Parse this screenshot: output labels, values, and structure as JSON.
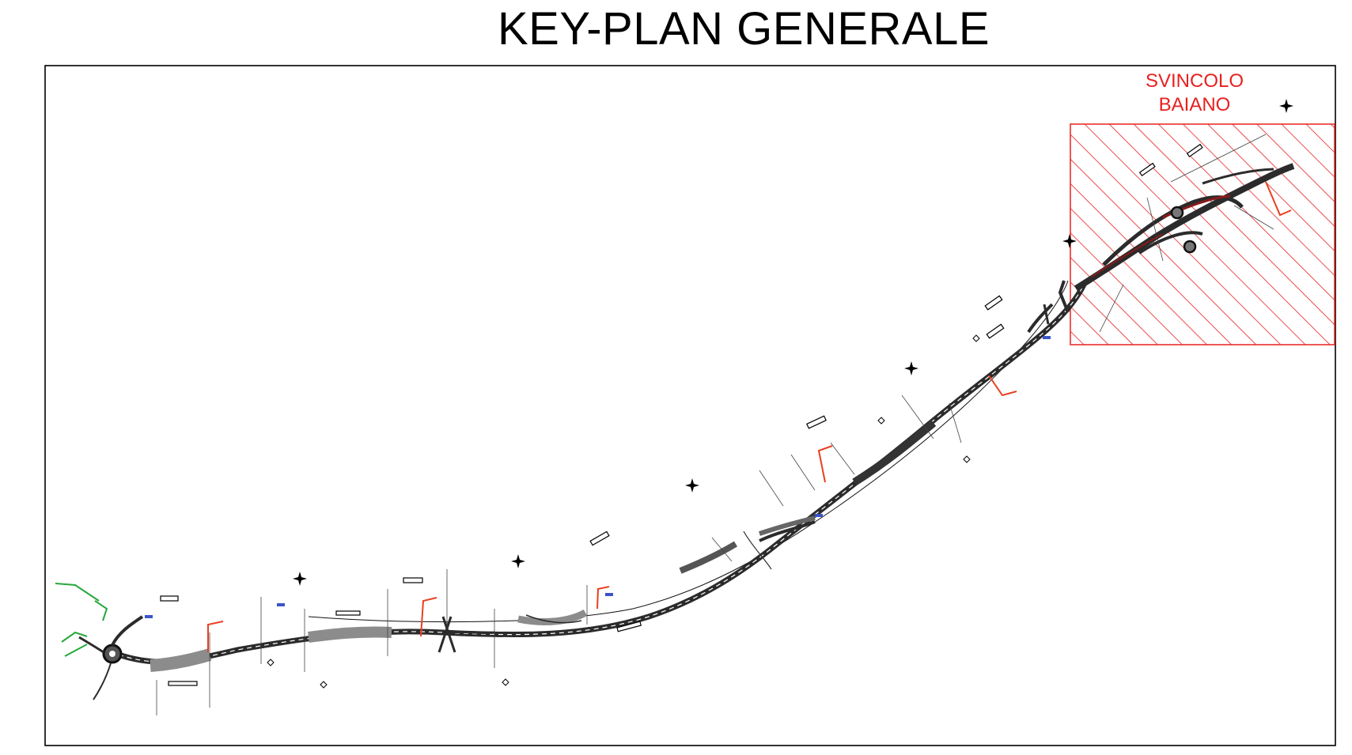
{
  "page_title": "KEY-PLAN GENERALE",
  "zone": {
    "label_line1": "SVINCOLO",
    "label_line2": "BAIANO",
    "color": "#e8201f"
  },
  "colors": {
    "road": "#2b2b2b",
    "road_fill": "#8c8c8c",
    "section_marker": "#e8401f",
    "label_blue": "#3a54c8",
    "ditch_green": "#27a83a"
  },
  "icons": {
    "north_arrow": "four-point-star"
  }
}
